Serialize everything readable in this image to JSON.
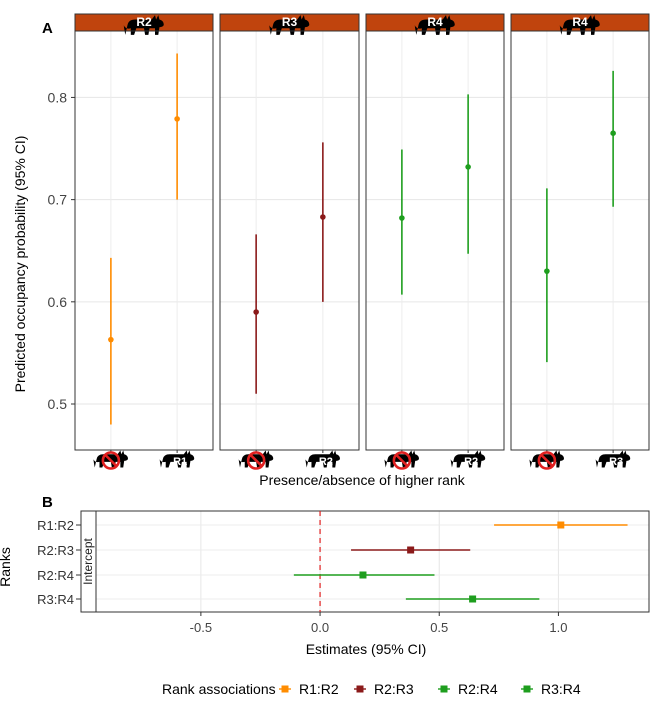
{
  "colors": {
    "R1:R2": "#ff8c00",
    "R2:R3": "#8b1a1a",
    "R2:R4": "#1e9e1e",
    "R3:R4": "#1e9e1e",
    "strip": "#c0440d",
    "refline": "#e02020"
  },
  "panel_a": {
    "label": "A",
    "ylabel": "Predicted occupancy probability (95% CI)",
    "xlabel": "Presence/absence of higher rank",
    "icons": [
      "carnivore-silhouette-icon",
      "no-entry-icon"
    ]
  },
  "panel_b": {
    "label": "B",
    "ylabel": "Ranks",
    "xlabel": "Estimates (95% CI)",
    "facet_label": "Intercept"
  },
  "legend": {
    "title": "Rank associations",
    "items": [
      "R1:R2",
      "R2:R3",
      "R2:R4",
      "R3:R4"
    ]
  },
  "chart_data": [
    {
      "type": "scatter",
      "description_free": true,
      "ylim": [
        0.455,
        0.865
      ],
      "yticks": [
        0.5,
        0.6,
        0.7,
        0.8
      ],
      "grid": true,
      "panels": [
        {
          "strip_label": "R2",
          "color_key": "R1:R2",
          "categories": [
            "absent",
            "R1"
          ],
          "points": [
            {
              "y": 0.563,
              "ylo": 0.48,
              "yhi": 0.643
            },
            {
              "y": 0.779,
              "ylo": 0.7,
              "yhi": 0.843
            }
          ]
        },
        {
          "strip_label": "R3",
          "color_key": "R2:R3",
          "categories": [
            "absent",
            "R2"
          ],
          "points": [
            {
              "y": 0.59,
              "ylo": 0.51,
              "yhi": 0.666
            },
            {
              "y": 0.683,
              "ylo": 0.6,
              "yhi": 0.756
            }
          ]
        },
        {
          "strip_label": "R4",
          "color_key": "R2:R4",
          "categories": [
            "absent",
            "R2"
          ],
          "points": [
            {
              "y": 0.682,
              "ylo": 0.607,
              "yhi": 0.749
            },
            {
              "y": 0.732,
              "ylo": 0.647,
              "yhi": 0.803
            }
          ]
        },
        {
          "strip_label": "R4",
          "color_key": "R3:R4",
          "categories": [
            "absent",
            "R3"
          ],
          "points": [
            {
              "y": 0.63,
              "ylo": 0.541,
              "yhi": 0.711
            },
            {
              "y": 0.765,
              "ylo": 0.693,
              "yhi": 0.826
            }
          ]
        }
      ]
    },
    {
      "type": "scatter",
      "xlim": [
        -0.94,
        1.38
      ],
      "xticks": [
        -0.5,
        0.0,
        0.5,
        1.0
      ],
      "xtick_labels": [
        "-0.5",
        "0.0",
        "0.5",
        "1.0"
      ],
      "reference_x": 0,
      "grid": true,
      "legend_position": "bottom",
      "categories": [
        "R1:R2",
        "R2:R3",
        "R2:R4",
        "R3:R4"
      ],
      "estimates": [
        {
          "name": "R1:R2",
          "x": 1.01,
          "xlo": 0.73,
          "xhi": 1.29
        },
        {
          "name": "R2:R3",
          "x": 0.38,
          "xlo": 0.13,
          "xhi": 0.63
        },
        {
          "name": "R2:R4",
          "x": 0.18,
          "xlo": -0.11,
          "xhi": 0.48
        },
        {
          "name": "R3:R4",
          "x": 0.64,
          "xlo": 0.36,
          "xhi": 0.92
        }
      ]
    }
  ]
}
